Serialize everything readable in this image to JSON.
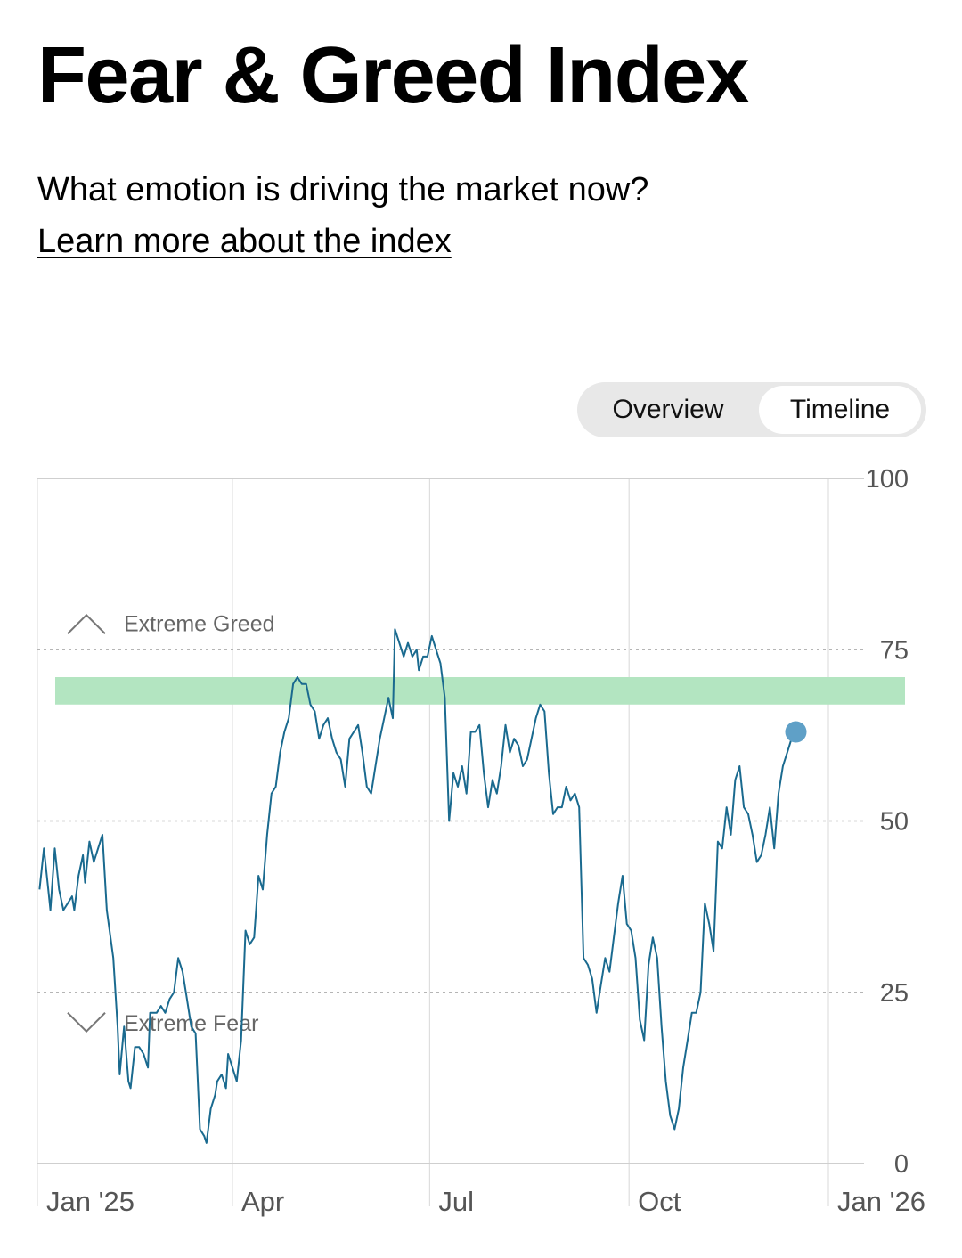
{
  "header": {
    "title": "Fear & Greed Index",
    "subtitle": "What emotion is driving the market now?",
    "learn_link": "Learn more about the index"
  },
  "toggle": {
    "overview_label": "Overview",
    "timeline_label": "Timeline",
    "selected": "Timeline"
  },
  "chart_data": {
    "type": "line",
    "title": "",
    "xlabel": "",
    "ylabel": "",
    "ylim": [
      0,
      100
    ],
    "xlim": [
      "2025-01-01",
      "2026-01-01"
    ],
    "y_ticks": [
      "0",
      "25",
      "50",
      "75",
      "100"
    ],
    "x_ticks": [
      {
        "label": "Jan '25",
        "date": "2025-01-01"
      },
      {
        "label": "Apr",
        "date": "2025-04-01"
      },
      {
        "label": "Jul",
        "date": "2025-07-01"
      },
      {
        "label": "Oct",
        "date": "2025-10-01"
      },
      {
        "label": "Jan '26",
        "date": "2026-01-01"
      }
    ],
    "zones": {
      "extreme_greed_label": "Extreme Greed",
      "extreme_fear_label": "Extreme Fear"
    },
    "band": {
      "from": 67,
      "to": 71,
      "color": "#b3e5c1"
    },
    "colors": {
      "line": "#1a6a8f",
      "marker": "#5fa0c7",
      "grid": "#d8d8d8",
      "dotted": "#b5b5b5"
    },
    "grid": true,
    "series": [
      {
        "values": [
          [
            "2025-01-02",
            40
          ],
          [
            "2025-01-04",
            46
          ],
          [
            "2025-01-06",
            40
          ],
          [
            "2025-01-07",
            37
          ],
          [
            "2025-01-09",
            46
          ],
          [
            "2025-01-11",
            40
          ],
          [
            "2025-01-13",
            37
          ],
          [
            "2025-01-15",
            38
          ],
          [
            "2025-01-17",
            39
          ],
          [
            "2025-01-18",
            37
          ],
          [
            "2025-01-20",
            42
          ],
          [
            "2025-01-22",
            45
          ],
          [
            "2025-01-23",
            41
          ],
          [
            "2025-01-25",
            47
          ],
          [
            "2025-01-27",
            44
          ],
          [
            "2025-01-29",
            46
          ],
          [
            "2025-01-31",
            48
          ],
          [
            "2025-02-02",
            37
          ],
          [
            "2025-02-05",
            30
          ],
          [
            "2025-02-07",
            20
          ],
          [
            "2025-02-08",
            13
          ],
          [
            "2025-02-10",
            20
          ],
          [
            "2025-02-12",
            12
          ],
          [
            "2025-02-13",
            11
          ],
          [
            "2025-02-15",
            17
          ],
          [
            "2025-02-17",
            17
          ],
          [
            "2025-02-19",
            16
          ],
          [
            "2025-02-21",
            14
          ],
          [
            "2025-02-22",
            22
          ],
          [
            "2025-02-25",
            22
          ],
          [
            "2025-02-27",
            23
          ],
          [
            "2025-03-01",
            22
          ],
          [
            "2025-03-03",
            24
          ],
          [
            "2025-03-05",
            25
          ],
          [
            "2025-03-07",
            30
          ],
          [
            "2025-03-09",
            28
          ],
          [
            "2025-03-11",
            24
          ],
          [
            "2025-03-13",
            20
          ],
          [
            "2025-03-15",
            19
          ],
          [
            "2025-03-17",
            5
          ],
          [
            "2025-03-19",
            4
          ],
          [
            "2025-03-20",
            3
          ],
          [
            "2025-03-22",
            8
          ],
          [
            "2025-03-24",
            10
          ],
          [
            "2025-03-25",
            12
          ],
          [
            "2025-03-27",
            13
          ],
          [
            "2025-03-29",
            11
          ],
          [
            "2025-03-30",
            16
          ],
          [
            "2025-04-01",
            14
          ],
          [
            "2025-04-03",
            12
          ],
          [
            "2025-04-05",
            18
          ],
          [
            "2025-04-07",
            34
          ],
          [
            "2025-04-09",
            32
          ],
          [
            "2025-04-11",
            33
          ],
          [
            "2025-04-13",
            42
          ],
          [
            "2025-04-15",
            40
          ],
          [
            "2025-04-17",
            48
          ],
          [
            "2025-04-19",
            54
          ],
          [
            "2025-04-21",
            55
          ],
          [
            "2025-04-23",
            60
          ],
          [
            "2025-04-25",
            63
          ],
          [
            "2025-04-27",
            65
          ],
          [
            "2025-04-29",
            70
          ],
          [
            "2025-05-01",
            71
          ],
          [
            "2025-05-03",
            70
          ],
          [
            "2025-05-05",
            70
          ],
          [
            "2025-05-07",
            67
          ],
          [
            "2025-05-09",
            66
          ],
          [
            "2025-05-11",
            62
          ],
          [
            "2025-05-13",
            64
          ],
          [
            "2025-05-15",
            65
          ],
          [
            "2025-05-17",
            62
          ],
          [
            "2025-05-19",
            60
          ],
          [
            "2025-05-21",
            59
          ],
          [
            "2025-05-23",
            55
          ],
          [
            "2025-05-25",
            62
          ],
          [
            "2025-05-27",
            63
          ],
          [
            "2025-05-29",
            64
          ],
          [
            "2025-05-31",
            60
          ],
          [
            "2025-06-02",
            55
          ],
          [
            "2025-06-04",
            54
          ],
          [
            "2025-06-06",
            58
          ],
          [
            "2025-06-08",
            62
          ],
          [
            "2025-06-10",
            65
          ],
          [
            "2025-06-12",
            68
          ],
          [
            "2025-06-14",
            65
          ],
          [
            "2025-06-15",
            78
          ],
          [
            "2025-06-17",
            76
          ],
          [
            "2025-06-19",
            74
          ],
          [
            "2025-06-21",
            76
          ],
          [
            "2025-06-23",
            74
          ],
          [
            "2025-06-25",
            75
          ],
          [
            "2025-06-26",
            72
          ],
          [
            "2025-06-28",
            74
          ],
          [
            "2025-06-30",
            74
          ],
          [
            "2025-07-02",
            77
          ],
          [
            "2025-07-04",
            75
          ],
          [
            "2025-07-06",
            73
          ],
          [
            "2025-07-08",
            68
          ],
          [
            "2025-07-10",
            50
          ],
          [
            "2025-07-12",
            57
          ],
          [
            "2025-07-14",
            55
          ],
          [
            "2025-07-16",
            58
          ],
          [
            "2025-07-18",
            54
          ],
          [
            "2025-07-20",
            63
          ],
          [
            "2025-07-22",
            63
          ],
          [
            "2025-07-24",
            64
          ],
          [
            "2025-07-26",
            57
          ],
          [
            "2025-07-28",
            52
          ],
          [
            "2025-07-30",
            56
          ],
          [
            "2025-08-01",
            54
          ],
          [
            "2025-08-03",
            58
          ],
          [
            "2025-08-05",
            64
          ],
          [
            "2025-08-07",
            60
          ],
          [
            "2025-08-09",
            62
          ],
          [
            "2025-08-11",
            61
          ],
          [
            "2025-08-13",
            58
          ],
          [
            "2025-08-15",
            59
          ],
          [
            "2025-08-17",
            62
          ],
          [
            "2025-08-19",
            65
          ],
          [
            "2025-08-21",
            67
          ],
          [
            "2025-08-23",
            66
          ],
          [
            "2025-08-25",
            57
          ],
          [
            "2025-08-27",
            51
          ],
          [
            "2025-08-29",
            52
          ],
          [
            "2025-08-31",
            52
          ],
          [
            "2025-09-02",
            55
          ],
          [
            "2025-09-04",
            53
          ],
          [
            "2025-09-06",
            54
          ],
          [
            "2025-09-08",
            52
          ],
          [
            "2025-09-10",
            30
          ],
          [
            "2025-09-12",
            29
          ],
          [
            "2025-09-14",
            27
          ],
          [
            "2025-09-16",
            22
          ],
          [
            "2025-09-18",
            26
          ],
          [
            "2025-09-20",
            30
          ],
          [
            "2025-09-22",
            28
          ],
          [
            "2025-09-24",
            33
          ],
          [
            "2025-09-26",
            38
          ],
          [
            "2025-09-28",
            42
          ],
          [
            "2025-09-30",
            35
          ],
          [
            "2025-10-02",
            34
          ],
          [
            "2025-10-04",
            30
          ],
          [
            "2025-10-06",
            21
          ],
          [
            "2025-10-08",
            18
          ],
          [
            "2025-10-10",
            29
          ],
          [
            "2025-10-12",
            33
          ],
          [
            "2025-10-14",
            30
          ],
          [
            "2025-10-16",
            20
          ],
          [
            "2025-10-18",
            12
          ],
          [
            "2025-10-20",
            7
          ],
          [
            "2025-10-22",
            5
          ],
          [
            "2025-10-24",
            8
          ],
          [
            "2025-10-26",
            14
          ],
          [
            "2025-10-28",
            18
          ],
          [
            "2025-10-30",
            22
          ],
          [
            "2025-11-01",
            22
          ],
          [
            "2025-11-03",
            25
          ],
          [
            "2025-11-05",
            38
          ],
          [
            "2025-11-07",
            35
          ],
          [
            "2025-11-09",
            31
          ],
          [
            "2025-11-11",
            47
          ],
          [
            "2025-11-13",
            46
          ],
          [
            "2025-11-15",
            52
          ],
          [
            "2025-11-17",
            48
          ],
          [
            "2025-11-19",
            56
          ],
          [
            "2025-11-21",
            58
          ],
          [
            "2025-11-23",
            52
          ],
          [
            "2025-11-25",
            51
          ],
          [
            "2025-11-27",
            48
          ],
          [
            "2025-11-29",
            44
          ],
          [
            "2025-12-01",
            45
          ],
          [
            "2025-12-03",
            48
          ],
          [
            "2025-12-05",
            52
          ],
          [
            "2025-12-07",
            46
          ],
          [
            "2025-12-09",
            54
          ],
          [
            "2025-12-11",
            58
          ],
          [
            "2025-12-13",
            60
          ],
          [
            "2025-12-15",
            62
          ],
          [
            "2025-12-17",
            63
          ]
        ]
      }
    ],
    "latest_marker": {
      "date": "2025-12-17",
      "value": 63
    }
  }
}
